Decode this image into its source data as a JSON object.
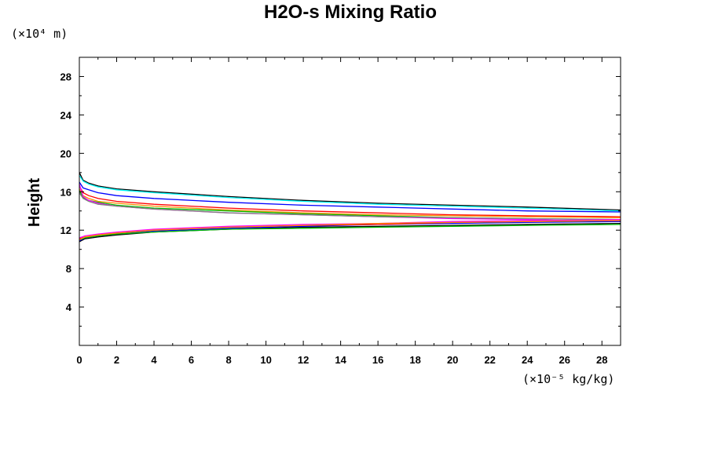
{
  "chart_data": {
    "type": "line",
    "title": "H2O-s Mixing Ratio",
    "ylabel": "Height",
    "xlabel": "",
    "y_unit": "(×10⁴ m)",
    "x_unit": "(×10⁻⁵ kg/kg)",
    "xlim": [
      0,
      29
    ],
    "ylim": [
      0,
      30
    ],
    "x_ticks": [
      0,
      2,
      4,
      6,
      8,
      10,
      12,
      14,
      16,
      18,
      20,
      22,
      24,
      26,
      28
    ],
    "x_tick_labels": [
      "0",
      "2",
      "4",
      "6",
      "8",
      "10",
      "12",
      "14",
      "16",
      "18",
      "20",
      "22",
      "24",
      "26",
      "28"
    ],
    "y_ticks": [
      4,
      8,
      12,
      16,
      20,
      24,
      28
    ],
    "y_tick_labels": [
      "4",
      "8",
      "12",
      "16",
      "20",
      "24",
      "28"
    ],
    "grid": false,
    "legend": "none",
    "series": [
      {
        "color": "#000000",
        "x": [
          0,
          0.2,
          0.5,
          1,
          2,
          4,
          8,
          12,
          16,
          20,
          24,
          29
        ],
        "y": [
          18.0,
          17.2,
          16.9,
          16.6,
          16.3,
          16.0,
          15.5,
          15.1,
          14.8,
          14.6,
          14.4,
          14.1
        ]
      },
      {
        "color": "#00ffff",
        "x": [
          0,
          0.2,
          0.5,
          1,
          2,
          4,
          8,
          12,
          16,
          20,
          24,
          29
        ],
        "y": [
          17.7,
          17.1,
          16.8,
          16.5,
          16.2,
          15.9,
          15.4,
          15.0,
          14.7,
          14.5,
          14.3,
          14.0
        ]
      },
      {
        "color": "#0000ff",
        "x": [
          0,
          0.2,
          0.5,
          1,
          2,
          4,
          8,
          12,
          16,
          20,
          24,
          29
        ],
        "y": [
          17.0,
          16.4,
          16.2,
          15.9,
          15.6,
          15.3,
          14.9,
          14.6,
          14.4,
          14.2,
          14.0,
          13.9
        ]
      },
      {
        "color": "#ff0000",
        "x": [
          0,
          0.2,
          0.5,
          1,
          2,
          4,
          8,
          12,
          16,
          20,
          24,
          29
        ],
        "y": [
          16.6,
          15.9,
          15.6,
          15.3,
          15.0,
          14.7,
          14.3,
          14.0,
          13.8,
          13.6,
          13.5,
          13.4
        ]
      },
      {
        "color": "#ff8c00",
        "x": [
          0,
          0.2,
          0.5,
          1,
          2,
          4,
          8,
          12,
          16,
          20,
          24,
          29
        ],
        "y": [
          16.3,
          15.6,
          15.3,
          15.0,
          14.8,
          14.5,
          14.1,
          13.8,
          13.6,
          13.5,
          13.4,
          13.3
        ]
      },
      {
        "color": "#00c000",
        "x": [
          0,
          0.2,
          0.5,
          1,
          2,
          4,
          8,
          12,
          16,
          20,
          24,
          29
        ],
        "y": [
          16.1,
          15.4,
          15.1,
          14.9,
          14.6,
          14.3,
          14.0,
          13.7,
          13.5,
          13.3,
          13.2,
          13.1
        ]
      },
      {
        "color": "#ff00ff",
        "x": [
          0,
          0.2,
          0.5,
          1,
          2,
          4,
          8,
          12,
          16,
          20,
          24,
          29
        ],
        "y": [
          16.8,
          15.5,
          15.1,
          14.8,
          14.5,
          14.2,
          13.8,
          13.6,
          13.4,
          13.2,
          13.1,
          12.9
        ]
      },
      {
        "color": "#808080",
        "x": [
          0,
          0.2,
          0.5,
          1,
          2,
          4,
          8,
          12,
          16,
          20,
          24,
          29
        ],
        "y": [
          15.9,
          15.3,
          15.0,
          14.7,
          14.5,
          14.2,
          13.8,
          13.6,
          13.4,
          13.3,
          13.2,
          13.1
        ]
      },
      {
        "color": "#000000",
        "x": [
          0,
          0.3,
          1,
          2,
          4,
          8,
          12,
          16,
          20,
          24,
          29
        ],
        "y": [
          10.8,
          11.1,
          11.3,
          11.5,
          11.8,
          12.1,
          12.3,
          12.4,
          12.5,
          12.6,
          12.7
        ]
      },
      {
        "color": "#0000ff",
        "x": [
          0,
          0.3,
          1,
          2,
          4,
          8,
          12,
          16,
          20,
          24,
          29
        ],
        "y": [
          10.9,
          11.2,
          11.4,
          11.6,
          11.9,
          12.2,
          12.4,
          12.6,
          12.7,
          12.8,
          12.9
        ]
      },
      {
        "color": "#00c000",
        "x": [
          0,
          0.3,
          1,
          2,
          4,
          8,
          12,
          16,
          20,
          24,
          29
        ],
        "y": [
          11.0,
          11.2,
          11.4,
          11.6,
          11.8,
          12.1,
          12.2,
          12.3,
          12.4,
          12.5,
          12.6
        ]
      },
      {
        "color": "#ff0000",
        "x": [
          0,
          0.3,
          1,
          2,
          4,
          8,
          12,
          16,
          20,
          24,
          29
        ],
        "y": [
          11.1,
          11.3,
          11.5,
          11.7,
          12.0,
          12.3,
          12.5,
          12.6,
          12.8,
          12.9,
          13.0
        ]
      },
      {
        "color": "#ff00ff",
        "x": [
          0,
          0.3,
          1,
          2,
          4,
          8,
          12,
          16,
          20,
          24,
          29
        ],
        "y": [
          11.2,
          11.4,
          11.6,
          11.8,
          12.1,
          12.4,
          12.6,
          12.7,
          12.9,
          13.0,
          13.1
        ]
      },
      {
        "color": "#ff8c00",
        "x": [
          0,
          0.3,
          1,
          2,
          4,
          8,
          12,
          16,
          20,
          24,
          29
        ],
        "y": [
          11.0,
          11.3,
          11.5,
          11.7,
          12.0,
          12.3,
          12.5,
          12.7,
          12.8,
          12.9,
          13.0
        ]
      }
    ]
  }
}
